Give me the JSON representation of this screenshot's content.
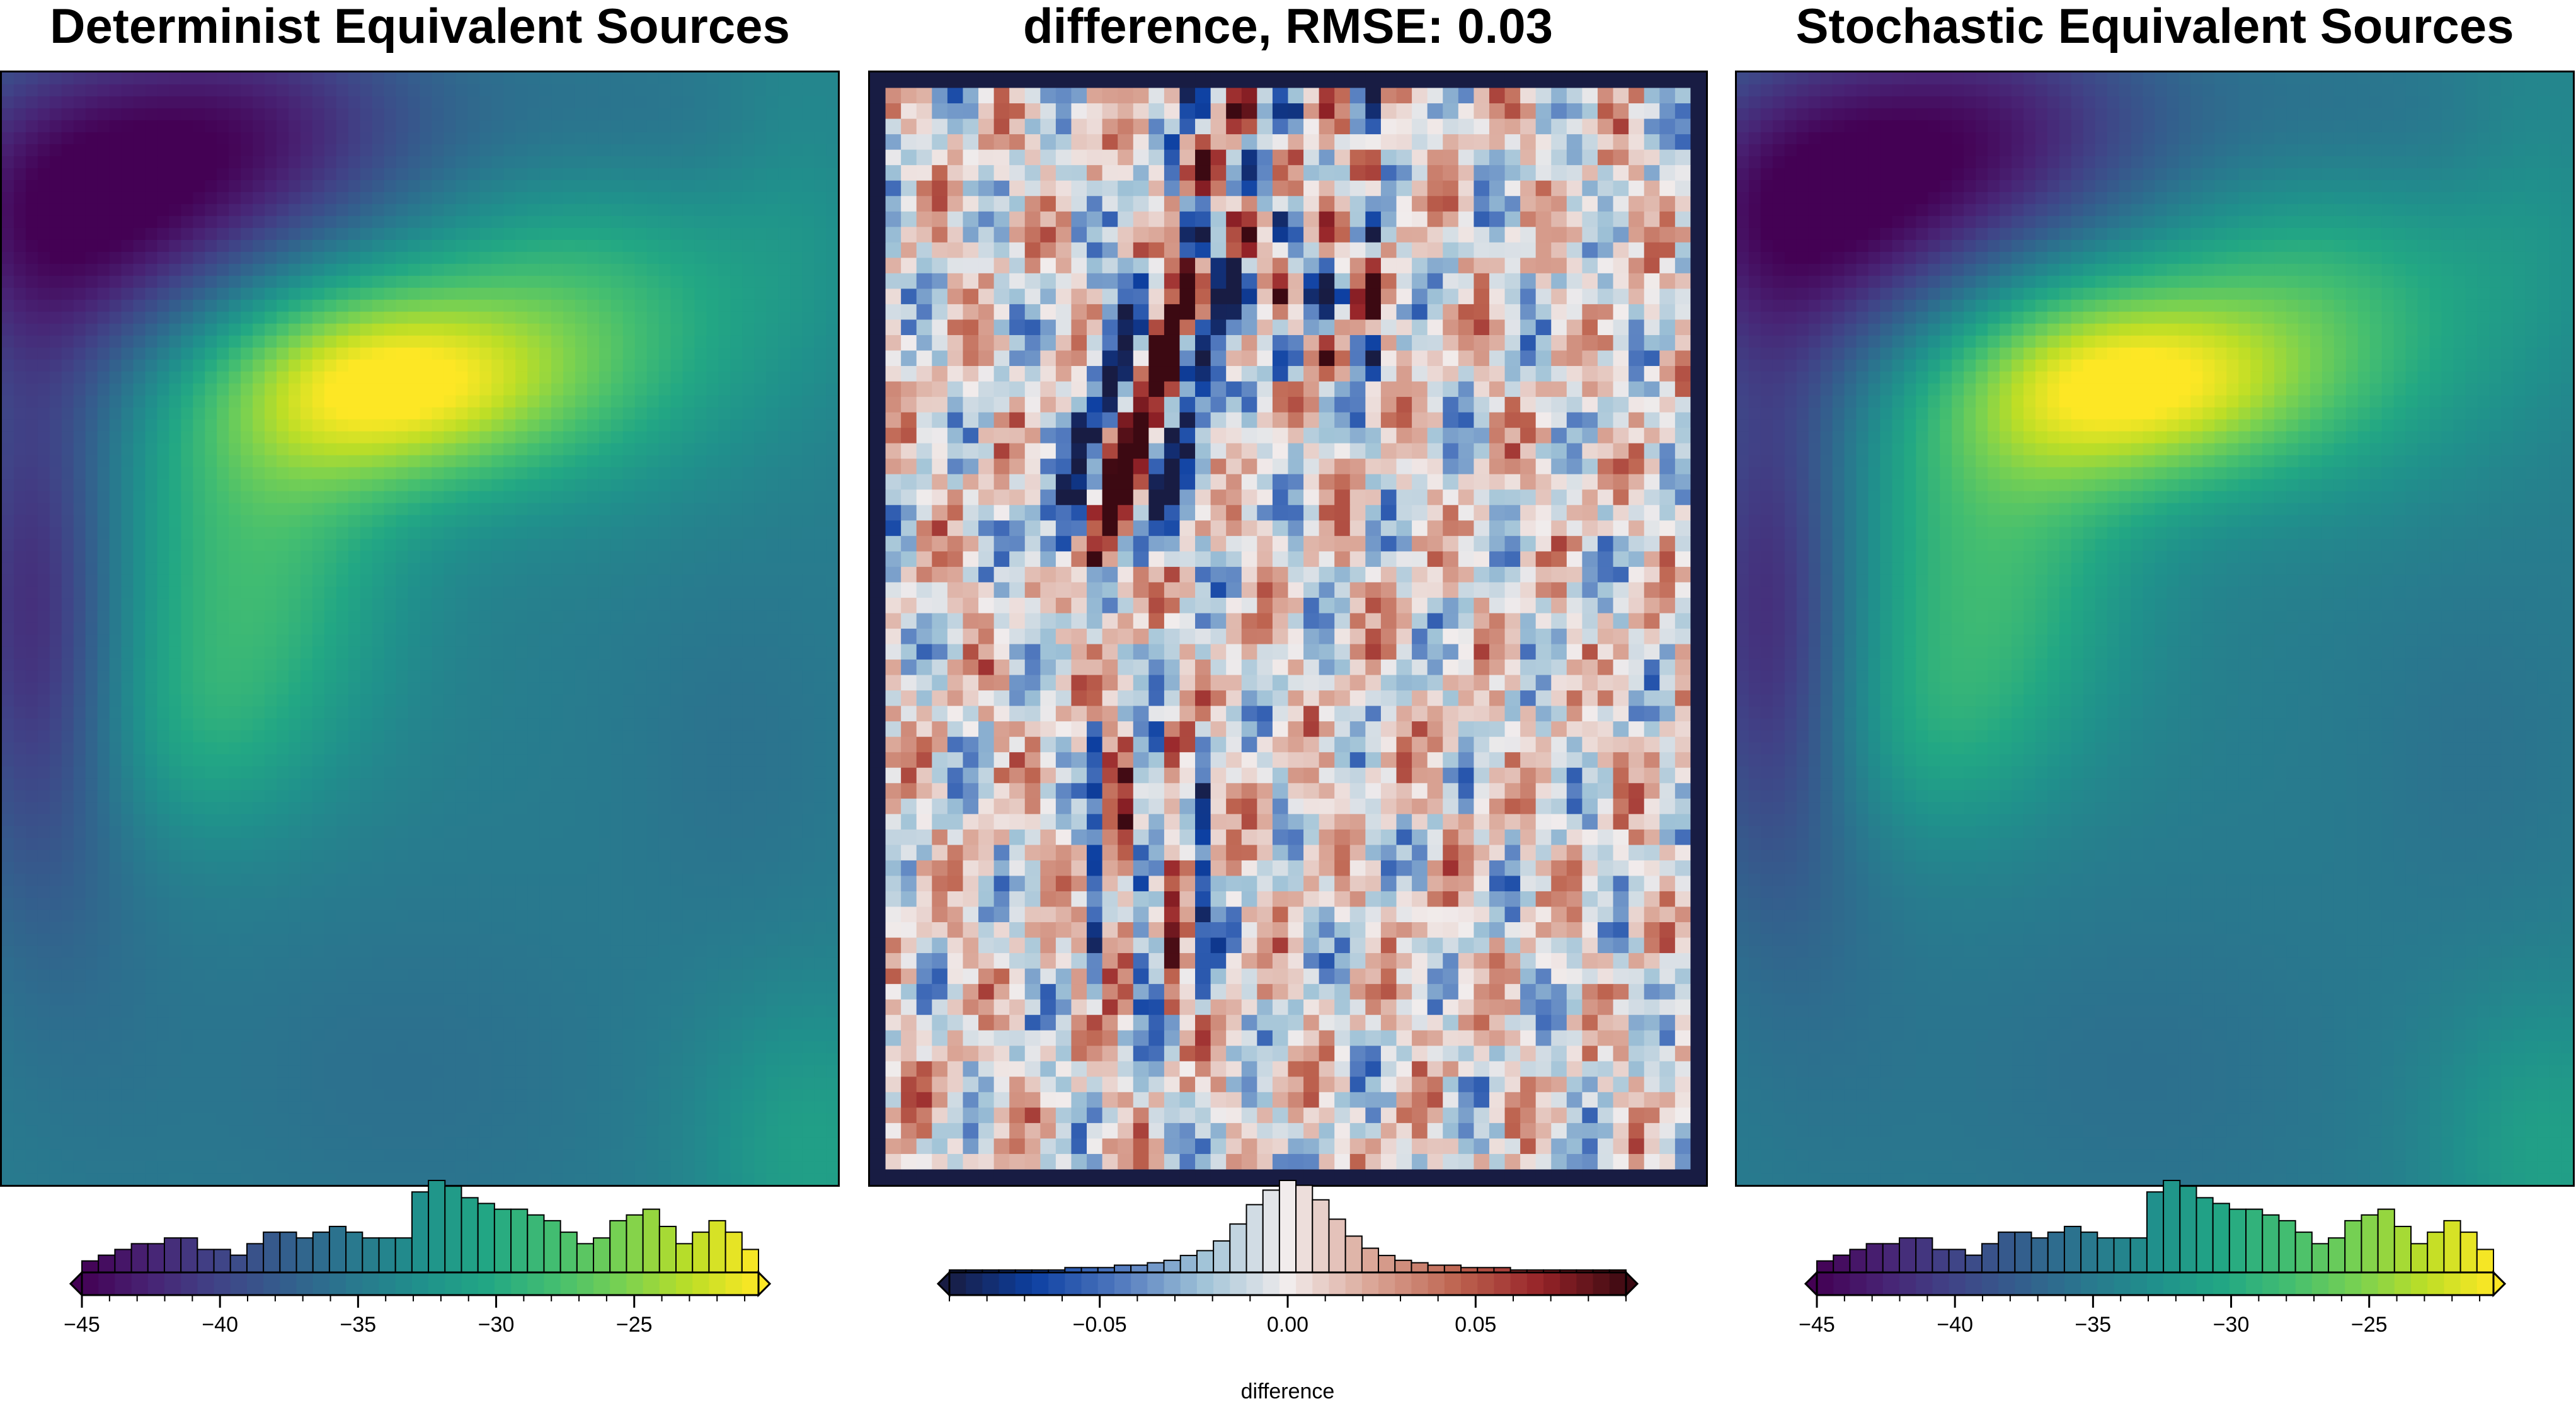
{
  "panels": [
    {
      "title": "Determinist Equivalent Sources"
    },
    {
      "title": "difference, RMSE: 0.03"
    },
    {
      "title": "Stochastic Equivalent Sources"
    }
  ],
  "chart_data": [
    {
      "type": "heatmap",
      "title": "Determinist Equivalent Sources",
      "colormap": "viridis",
      "colorbar": {
        "ticks": [
          -45,
          -40,
          -35,
          -30,
          -25
        ],
        "tick_labels": [
          "−45",
          "−40",
          "−35",
          "−30",
          "−25"
        ],
        "range": [
          -45,
          -20.5
        ],
        "histogram": [
          2,
          3,
          4,
          5,
          5,
          6,
          6,
          4,
          4,
          3,
          5,
          7,
          7,
          6,
          7,
          8,
          7,
          6,
          6,
          6,
          14,
          16,
          15,
          13,
          12,
          11,
          11,
          10,
          9,
          7,
          5,
          6,
          9,
          10,
          11,
          8,
          5,
          7,
          9,
          7,
          4
        ]
      }
    },
    {
      "type": "heatmap",
      "title": "difference, RMSE: 0.03",
      "colormap": "balance",
      "colorbar": {
        "ticks": [
          -0.05,
          0.0,
          0.05
        ],
        "tick_labels": [
          "−0.05",
          "0.00",
          "0.05"
        ],
        "range": [
          -0.09,
          0.09
        ],
        "xlabel": "difference",
        "histogram": [
          1,
          1,
          1,
          1,
          1,
          1,
          1,
          2,
          2,
          2,
          3,
          3,
          4,
          5,
          7,
          9,
          13,
          20,
          28,
          34,
          38,
          36,
          30,
          22,
          15,
          10,
          7,
          5,
          4,
          3,
          3,
          2,
          2,
          2,
          1,
          1,
          1,
          1,
          1,
          1,
          1
        ]
      }
    },
    {
      "type": "heatmap",
      "title": "Stochastic Equivalent Sources",
      "colormap": "viridis",
      "colorbar": {
        "ticks": [
          -45,
          -40,
          -35,
          -30,
          -25
        ],
        "tick_labels": [
          "−45",
          "−40",
          "−35",
          "−30",
          "−25"
        ],
        "range": [
          -45,
          -20.5
        ],
        "histogram": [
          2,
          3,
          4,
          5,
          5,
          6,
          6,
          4,
          4,
          3,
          5,
          7,
          7,
          6,
          7,
          8,
          7,
          6,
          6,
          6,
          14,
          16,
          15,
          13,
          12,
          11,
          11,
          10,
          9,
          7,
          5,
          6,
          9,
          10,
          11,
          8,
          5,
          7,
          9,
          7,
          4
        ]
      }
    }
  ]
}
